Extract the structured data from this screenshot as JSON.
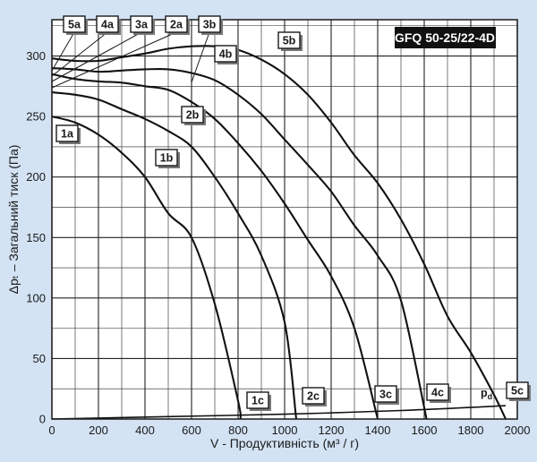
{
  "chart_data": {
    "type": "line",
    "title": "GFQ 50-25/22-4D",
    "xlabel": "V - Продуктивність (м³ / г)",
    "ylabel": "Δpₜ – Загальний тиск (Па)",
    "xlim": [
      0,
      2000
    ],
    "ylim": [
      0,
      330
    ],
    "x_ticks": [
      0,
      200,
      400,
      600,
      800,
      1000,
      1200,
      1400,
      1600,
      1800,
      2000
    ],
    "y_ticks": [
      0,
      50,
      100,
      150,
      200,
      250,
      300
    ],
    "grid": true,
    "series": [
      {
        "name": "1",
        "color": "#111111",
        "points": [
          [
            0,
            250
          ],
          [
            100,
            245
          ],
          [
            200,
            235
          ],
          [
            300,
            220
          ],
          [
            400,
            200
          ],
          [
            500,
            170
          ],
          [
            600,
            150
          ],
          [
            700,
            95
          ],
          [
            800,
            15
          ],
          [
            810,
            0
          ]
        ]
      },
      {
        "name": "2",
        "color": "#111111",
        "points": [
          [
            0,
            270
          ],
          [
            100,
            268
          ],
          [
            200,
            264
          ],
          [
            300,
            256
          ],
          [
            400,
            248
          ],
          [
            500,
            238
          ],
          [
            600,
            225
          ],
          [
            700,
            200
          ],
          [
            800,
            170
          ],
          [
            900,
            135
          ],
          [
            1000,
            80
          ],
          [
            1050,
            0
          ]
        ]
      },
      {
        "name": "3",
        "color": "#111111",
        "points": [
          [
            0,
            285
          ],
          [
            100,
            281
          ],
          [
            200,
            279
          ],
          [
            300,
            278
          ],
          [
            400,
            275
          ],
          [
            500,
            272
          ],
          [
            600,
            262
          ],
          [
            700,
            248
          ],
          [
            800,
            228
          ],
          [
            900,
            205
          ],
          [
            1000,
            178
          ],
          [
            1100,
            148
          ],
          [
            1200,
            118
          ],
          [
            1300,
            75
          ],
          [
            1400,
            0
          ]
        ]
      },
      {
        "name": "4",
        "color": "#111111",
        "points": [
          [
            0,
            290
          ],
          [
            100,
            289
          ],
          [
            200,
            287
          ],
          [
            300,
            288
          ],
          [
            400,
            289
          ],
          [
            500,
            289
          ],
          [
            600,
            286
          ],
          [
            700,
            280
          ],
          [
            800,
            268
          ],
          [
            900,
            252
          ],
          [
            1000,
            231
          ],
          [
            1100,
            210
          ],
          [
            1200,
            188
          ],
          [
            1300,
            160
          ],
          [
            1400,
            135
          ],
          [
            1500,
            98
          ],
          [
            1610,
            0
          ]
        ]
      },
      {
        "name": "5",
        "color": "#111111",
        "points": [
          [
            0,
            298
          ],
          [
            100,
            296
          ],
          [
            200,
            296
          ],
          [
            300,
            299
          ],
          [
            400,
            302
          ],
          [
            500,
            306
          ],
          [
            600,
            308
          ],
          [
            700,
            308
          ],
          [
            800,
            305
          ],
          [
            900,
            297
          ],
          [
            1000,
            285
          ],
          [
            1100,
            268
          ],
          [
            1200,
            245
          ],
          [
            1300,
            218
          ],
          [
            1400,
            195
          ],
          [
            1500,
            165
          ],
          [
            1600,
            128
          ],
          [
            1700,
            85
          ],
          [
            1800,
            55
          ],
          [
            1900,
            20
          ],
          [
            1950,
            0
          ]
        ]
      },
      {
        "name": "p_d",
        "color": "#111111",
        "points": [
          [
            0,
            0
          ],
          [
            500,
            2
          ],
          [
            1000,
            4
          ],
          [
            1500,
            7
          ],
          [
            1950,
            11
          ]
        ]
      }
    ],
    "annotations": [
      "1a",
      "1b",
      "1c",
      "2a",
      "2b",
      "2c",
      "3a",
      "3b",
      "3c",
      "4a",
      "4b",
      "4c",
      "5a",
      "5b",
      "5c",
      "p_d"
    ]
  }
}
